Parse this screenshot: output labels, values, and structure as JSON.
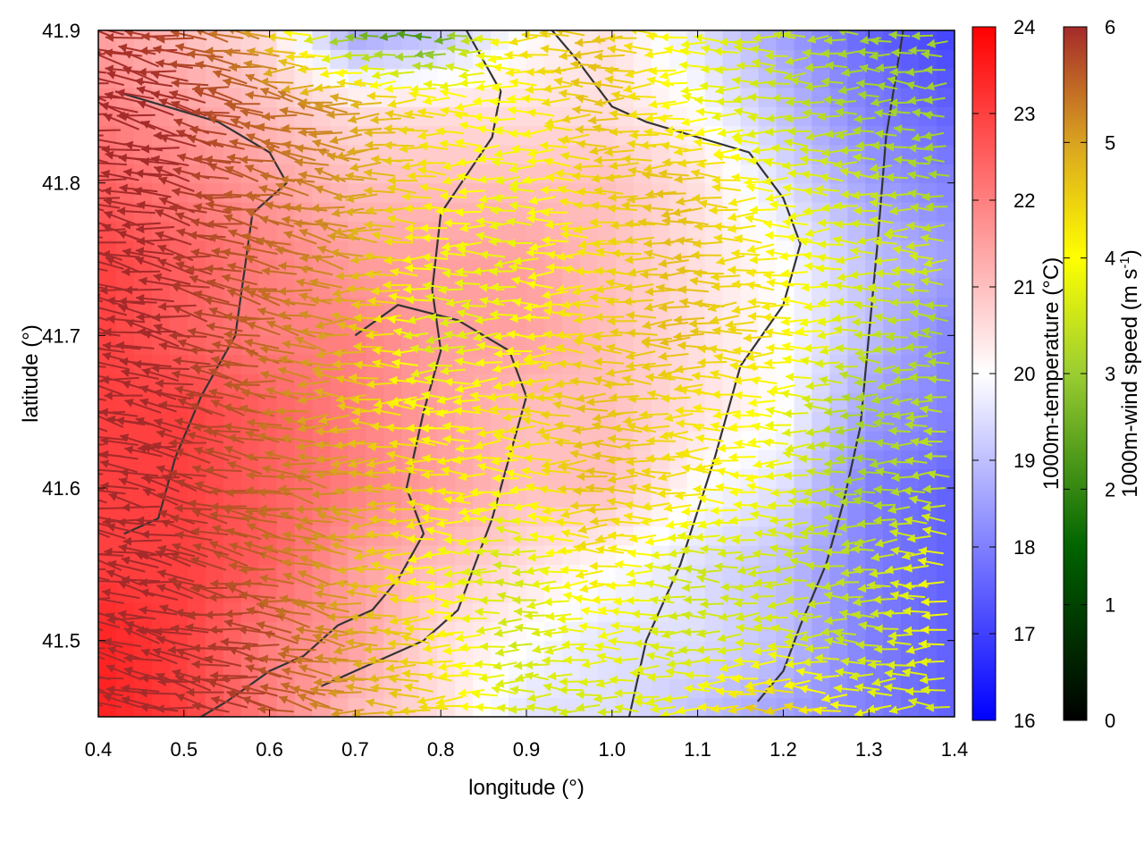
{
  "chart_data": {
    "type": "heatmap",
    "title": "",
    "xlabel": "longitude (°)",
    "ylabel": "latitude (°)",
    "xlim": [
      0.4,
      1.4
    ],
    "ylim": [
      41.45,
      41.9
    ],
    "x_ticks": [
      0.4,
      0.5,
      0.6,
      0.7,
      0.8,
      0.9,
      1.0,
      1.1,
      1.2,
      1.3,
      1.4
    ],
    "y_ticks": [
      41.5,
      41.6,
      41.7,
      41.8,
      41.9
    ],
    "x_tick_labels": [
      "0.4",
      "0.5",
      "0.6",
      "0.7",
      "0.8",
      "0.9",
      "1.0",
      "1.1",
      "1.2",
      "1.3",
      "1.4"
    ],
    "y_tick_labels": [
      "41.5",
      "41.6",
      "41.7",
      "41.8",
      "41.9"
    ],
    "grid": false,
    "temperature_colorbar": {
      "label": "1000m-temperature (°C)",
      "range": [
        16,
        24
      ],
      "ticks": [
        16,
        17,
        18,
        19,
        20,
        21,
        22,
        23,
        24
      ],
      "tick_labels": [
        "16",
        "17",
        "18",
        "19",
        "20",
        "21",
        "22",
        "23",
        "24"
      ],
      "colors": [
        "#0000ff",
        "#ffffff",
        "#ff0000"
      ]
    },
    "wind_colorbar": {
      "label_main": "1000m-wind speed (m s",
      "label_sup": "-1",
      "label_end": ")",
      "range": [
        0,
        6
      ],
      "ticks": [
        0,
        1,
        2,
        3,
        4,
        5,
        6
      ],
      "tick_labels": [
        "0",
        "1",
        "2",
        "3",
        "4",
        "5",
        "6"
      ],
      "colors": [
        "#000000",
        "#006400",
        "#9acd32",
        "#ffff00",
        "#daa520",
        "#a52a2a"
      ]
    },
    "temperature_field": {
      "x": [
        0.4,
        0.5,
        0.6,
        0.7,
        0.8,
        0.9,
        1.0,
        1.1,
        1.2,
        1.3,
        1.4
      ],
      "y": [
        41.9,
        41.85,
        41.8,
        41.75,
        41.7,
        41.65,
        41.6,
        41.55,
        41.5,
        41.45
      ],
      "values": [
        [
          21.5,
          21.0,
          20.5,
          18.5,
          19.0,
          20.0,
          20.5,
          19.5,
          18.5,
          17.5,
          17.0
        ],
        [
          22.0,
          21.5,
          21.0,
          20.5,
          20.5,
          20.5,
          20.5,
          20.0,
          19.0,
          18.0,
          17.5
        ],
        [
          22.5,
          22.0,
          21.5,
          21.0,
          21.0,
          21.0,
          21.0,
          20.5,
          19.5,
          18.5,
          18.0
        ],
        [
          23.0,
          22.5,
          22.0,
          21.5,
          21.5,
          21.5,
          21.0,
          20.5,
          20.0,
          19.0,
          18.5
        ],
        [
          23.0,
          22.5,
          22.0,
          22.0,
          21.5,
          21.5,
          21.0,
          20.5,
          20.0,
          19.0,
          18.0
        ],
        [
          23.0,
          23.0,
          22.5,
          22.0,
          21.5,
          21.0,
          21.0,
          20.5,
          20.0,
          18.5,
          18.0
        ],
        [
          23.0,
          23.0,
          22.5,
          22.0,
          21.5,
          21.0,
          21.0,
          20.0,
          19.5,
          18.0,
          17.5
        ],
        [
          23.0,
          23.0,
          22.5,
          21.5,
          21.0,
          20.5,
          20.0,
          19.5,
          19.0,
          18.0,
          17.5
        ],
        [
          23.5,
          23.0,
          22.0,
          21.5,
          20.5,
          20.0,
          19.5,
          19.5,
          19.0,
          18.0,
          17.5
        ],
        [
          23.5,
          23.0,
          22.0,
          21.0,
          20.5,
          19.5,
          19.5,
          19.0,
          18.5,
          18.0,
          17.5
        ]
      ]
    },
    "wind_speed_field": {
      "x": [
        0.4,
        0.5,
        0.6,
        0.7,
        0.8,
        0.9,
        1.0,
        1.1,
        1.2,
        1.3,
        1.4
      ],
      "y": [
        41.9,
        41.85,
        41.8,
        41.75,
        41.7,
        41.65,
        41.6,
        41.55,
        41.5,
        41.45
      ],
      "values": [
        [
          6.0,
          5.8,
          5.0,
          2.0,
          1.5,
          4.0,
          4.5,
          3.5,
          3.0,
          2.5,
          2.5
        ],
        [
          6.0,
          6.0,
          5.5,
          5.0,
          4.0,
          3.5,
          4.5,
          3.5,
          3.0,
          2.5,
          2.5
        ],
        [
          6.0,
          6.0,
          5.5,
          5.0,
          4.0,
          3.3,
          4.2,
          4.5,
          3.5,
          3.0,
          2.5
        ],
        [
          6.0,
          6.0,
          5.5,
          5.0,
          3.5,
          3.3,
          4.0,
          4.5,
          3.8,
          3.2,
          3.0
        ],
        [
          6.0,
          6.0,
          5.5,
          4.8,
          3.0,
          3.5,
          4.2,
          4.5,
          4.0,
          3.0,
          2.5
        ],
        [
          6.0,
          6.0,
          5.5,
          4.5,
          3.5,
          4.0,
          4.5,
          4.0,
          3.5,
          2.5,
          2.8
        ],
        [
          6.0,
          6.0,
          5.5,
          5.0,
          4.0,
          3.5,
          4.5,
          4.0,
          3.5,
          2.5,
          2.8
        ],
        [
          6.0,
          6.0,
          5.5,
          4.8,
          3.5,
          3.0,
          4.0,
          3.0,
          3.0,
          2.8,
          3.5
        ],
        [
          6.0,
          6.0,
          5.8,
          5.0,
          4.0,
          3.0,
          3.5,
          3.0,
          3.2,
          2.8,
          3.5
        ],
        [
          6.0,
          6.0,
          5.8,
          5.0,
          4.2,
          3.2,
          3.0,
          3.5,
          4.5,
          3.5,
          3.0
        ]
      ]
    },
    "wind_direction": "easterly (arrows point west / west-southwest)",
    "contours": [
      [
        [
          0.83,
          41.9
        ],
        [
          0.87,
          41.86
        ],
        [
          0.86,
          41.83
        ],
        [
          0.8,
          41.78
        ],
        [
          0.79,
          41.73
        ],
        [
          0.8,
          41.69
        ],
        [
          0.78,
          41.65
        ],
        [
          0.76,
          41.6
        ],
        [
          0.78,
          41.57
        ],
        [
          0.75,
          41.54
        ],
        [
          0.72,
          41.52
        ],
        [
          0.68,
          41.51
        ],
        [
          0.64,
          41.49
        ],
        [
          0.6,
          41.48
        ],
        [
          0.55,
          41.46
        ],
        [
          0.52,
          41.45
        ]
      ],
      [
        [
          0.93,
          41.9
        ],
        [
          0.96,
          41.88
        ],
        [
          1.0,
          41.85
        ],
        [
          1.04,
          41.84
        ],
        [
          1.1,
          41.83
        ],
        [
          1.16,
          41.82
        ],
        [
          1.2,
          41.79
        ],
        [
          1.22,
          41.76
        ],
        [
          1.2,
          41.72
        ],
        [
          1.15,
          41.68
        ],
        [
          1.12,
          41.62
        ],
        [
          1.08,
          41.55
        ],
        [
          1.04,
          41.5
        ],
        [
          1.02,
          41.45
        ]
      ],
      [
        [
          0.42,
          41.86
        ],
        [
          0.48,
          41.85
        ],
        [
          0.54,
          41.84
        ],
        [
          0.6,
          41.82
        ],
        [
          0.62,
          41.8
        ],
        [
          0.58,
          41.78
        ],
        [
          0.57,
          41.74
        ],
        [
          0.56,
          41.7
        ],
        [
          0.52,
          41.66
        ],
        [
          0.49,
          41.62
        ],
        [
          0.47,
          41.58
        ],
        [
          0.43,
          41.57
        ]
      ],
      [
        [
          0.7,
          41.7
        ],
        [
          0.75,
          41.72
        ],
        [
          0.82,
          41.71
        ],
        [
          0.88,
          41.69
        ],
        [
          0.9,
          41.66
        ],
        [
          0.88,
          41.62
        ],
        [
          0.86,
          41.58
        ],
        [
          0.84,
          41.55
        ],
        [
          0.82,
          41.52
        ],
        [
          0.78,
          41.5
        ],
        [
          0.74,
          41.49
        ],
        [
          0.7,
          41.48
        ],
        [
          0.66,
          41.47
        ]
      ],
      [
        [
          1.34,
          41.9
        ],
        [
          1.32,
          41.83
        ],
        [
          1.31,
          41.76
        ],
        [
          1.3,
          41.7
        ],
        [
          1.29,
          41.64
        ],
        [
          1.27,
          41.59
        ],
        [
          1.25,
          41.55
        ],
        [
          1.22,
          41.51
        ],
        [
          1.2,
          41.48
        ],
        [
          1.17,
          41.46
        ]
      ]
    ]
  }
}
